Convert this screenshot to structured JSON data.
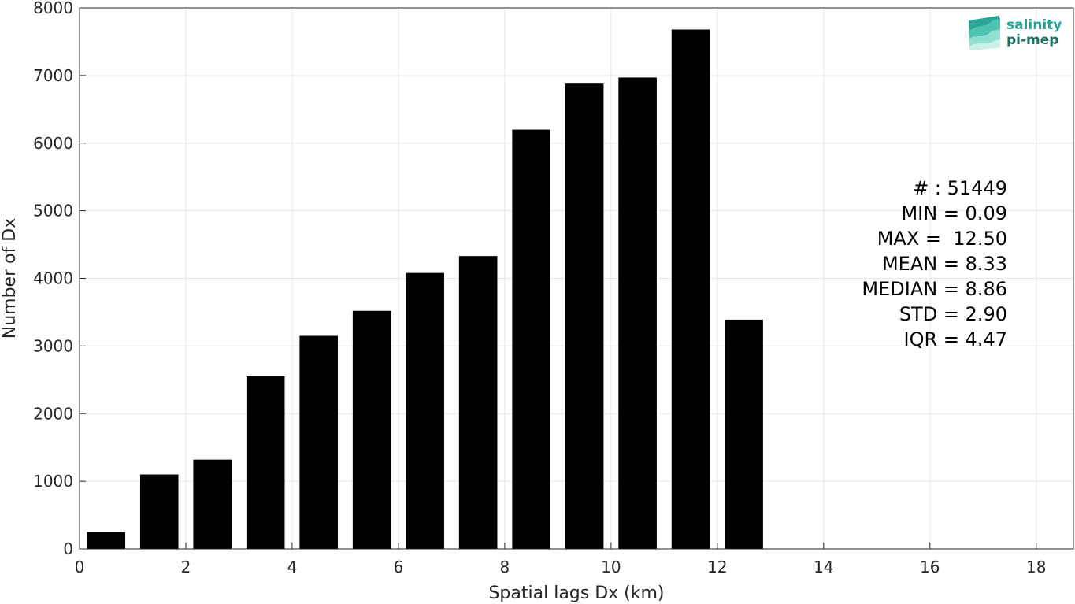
{
  "chart_data": {
    "type": "bar",
    "title": "",
    "xlabel": "Spatial lags Dx (km)",
    "ylabel": "Number of Dx",
    "xlim": [
      0,
      18.7
    ],
    "ylim": [
      0,
      8000
    ],
    "xticks": [
      0,
      2,
      4,
      6,
      8,
      10,
      12,
      14,
      16,
      18
    ],
    "yticks": [
      0,
      1000,
      2000,
      3000,
      4000,
      5000,
      6000,
      7000,
      8000
    ],
    "grid": true,
    "bar_color": "#000000",
    "x": [
      0.5,
      1.5,
      2.5,
      3.5,
      4.5,
      5.5,
      6.5,
      7.5,
      8.5,
      9.5,
      10.5,
      11.5,
      12.5
    ],
    "values": [
      250,
      1100,
      1320,
      2550,
      3150,
      3520,
      4080,
      4330,
      6200,
      6880,
      6970,
      7680,
      3390
    ],
    "stats": [
      "# : 51449",
      "MIN = 0.09",
      "MAX =  12.50",
      "MEAN = 8.33",
      "MEDIAN = 8.86",
      "STD = 2.90",
      "IQR = 4.47"
    ]
  },
  "logo": {
    "line1": "salinity",
    "line2": "pi-mep",
    "color1": "#1fa89a",
    "color2": "#1f6f66"
  }
}
